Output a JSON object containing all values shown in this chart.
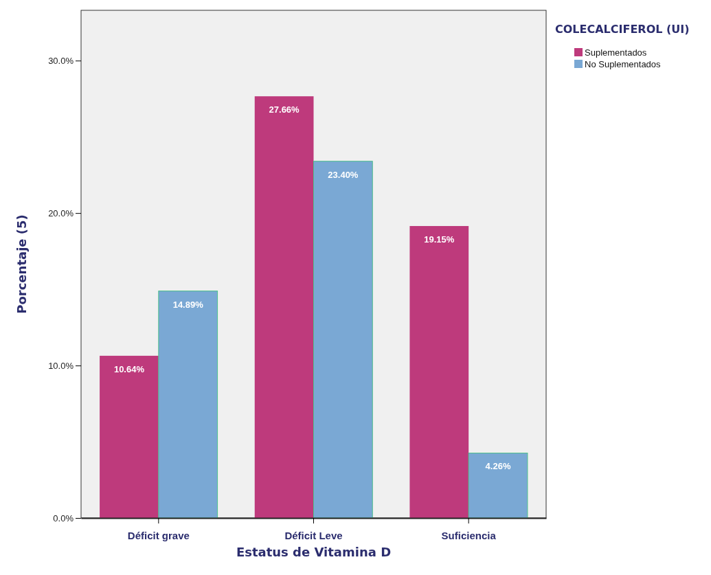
{
  "chart_data": {
    "type": "bar",
    "xlabel": "Estatus de Vitamina D",
    "ylabel": "Porcentaje (5)",
    "legend_title": "COLECALCIFEROL (UI)",
    "legend": "top right",
    "categories": [
      "Déficit grave",
      "Déficit Leve",
      "Suficiencia"
    ],
    "series": [
      {
        "name": "Suplementados",
        "color": "#be3a7c",
        "values": [
          10.64,
          27.66,
          19.15
        ],
        "value_labels": [
          "10.64%",
          "27.66%",
          "19.15%"
        ]
      },
      {
        "name": "No Suplementados",
        "color": "#7aa8d4",
        "values": [
          14.89,
          23.4,
          4.26
        ],
        "value_labels": [
          "14.89%",
          "23.40%",
          "4.26%"
        ]
      }
    ],
    "ylim": [
      0,
      33.3
    ],
    "yticks": [
      {
        "value": 0,
        "label": "0.0%"
      },
      {
        "value": 10,
        "label": "10.0%"
      },
      {
        "value": 20,
        "label": "20.0%"
      },
      {
        "value": 30,
        "label": "30.0%"
      }
    ],
    "grid": false
  }
}
